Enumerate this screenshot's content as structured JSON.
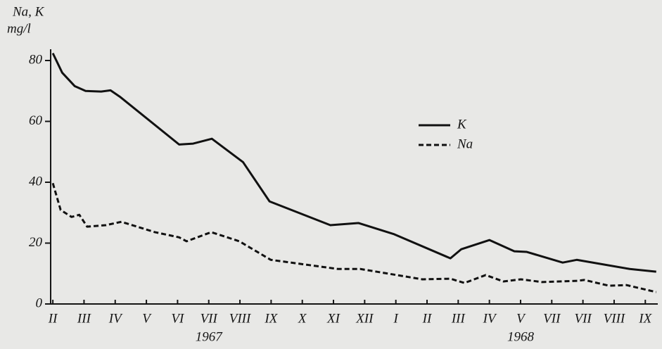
{
  "chart_data": {
    "type": "line",
    "y_label": [
      "Na, K",
      "mg/l"
    ],
    "annotations": [
      {
        "text": "1967",
        "x": 5
      },
      {
        "text": "1968",
        "x": 15
      }
    ],
    "xlim": [
      -0.07,
      19.4
    ],
    "xticks": [
      {
        "value": 0,
        "label": "II"
      },
      {
        "value": 1,
        "label": "III"
      },
      {
        "value": 2,
        "label": "IV"
      },
      {
        "value": 3,
        "label": "V"
      },
      {
        "value": 4,
        "label": "VI"
      },
      {
        "value": 5,
        "label": "VII"
      },
      {
        "value": 6,
        "label": "VIII"
      },
      {
        "value": 7,
        "label": "IX"
      },
      {
        "value": 8,
        "label": "X"
      },
      {
        "value": 9,
        "label": "XI"
      },
      {
        "value": 10,
        "label": "XII"
      },
      {
        "value": 11,
        "label": "I"
      },
      {
        "value": 12,
        "label": "II"
      },
      {
        "value": 13,
        "label": "III"
      },
      {
        "value": 14,
        "label": "IV"
      },
      {
        "value": 15,
        "label": "V"
      },
      {
        "value": 16,
        "label": "VII"
      },
      {
        "value": 17,
        "label": "VII"
      },
      {
        "value": 18,
        "label": "VIII"
      },
      {
        "value": 19,
        "label": "IX"
      }
    ],
    "ylim": [
      0,
      80
    ],
    "yticks": [
      0,
      20,
      40,
      60,
      80
    ],
    "series": [
      {
        "name": "K",
        "color": "#111111",
        "linestyle": "solid",
        "x": [
          0,
          0.3,
          0.7,
          1.05,
          1.55,
          1.85,
          2.15,
          4.05,
          4.5,
          5.1,
          6.1,
          6.95,
          8.9,
          9.8,
          10.95,
          12.75,
          13.1,
          14,
          14.8,
          15.2,
          16.35,
          16.8,
          18.5,
          19.35
        ],
        "values": [
          82.4,
          76,
          71.6,
          70,
          69.8,
          70.2,
          68.1,
          52.4,
          52.7,
          54.3,
          46.6,
          33.7,
          25.9,
          26.6,
          22.9,
          15,
          18,
          21,
          17.3,
          17.1,
          13.6,
          14.5,
          11.5,
          10.6
        ]
      },
      {
        "name": "Na",
        "color": "#111111",
        "linestyle": "dashed",
        "x": [
          0,
          0.25,
          0.6,
          0.85,
          1.1,
          1.7,
          2.2,
          3.27,
          4.05,
          4.29,
          5.08,
          5.98,
          6.99,
          9.14,
          9.86,
          11.85,
          12.75,
          13.2,
          13.88,
          14.45,
          15.01,
          15.69,
          16.82,
          17.04,
          17.83,
          18.4,
          19.35
        ],
        "values": [
          39.7,
          30.9,
          28.6,
          29.3,
          25.4,
          25.9,
          27,
          23.6,
          21.9,
          20.6,
          23.6,
          20.6,
          14.5,
          11.5,
          11.5,
          8.1,
          8.3,
          6.9,
          9.5,
          7.4,
          8.1,
          7.2,
          7.6,
          7.9,
          6,
          6.2,
          3.9
        ]
      }
    ]
  }
}
